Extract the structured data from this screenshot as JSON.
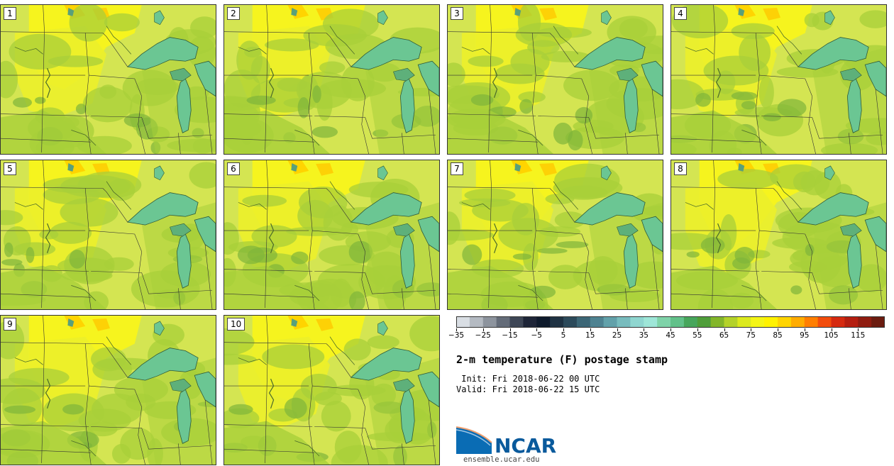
{
  "panels": [
    {
      "label": "1"
    },
    {
      "label": "2"
    },
    {
      "label": "3"
    },
    {
      "label": "4"
    },
    {
      "label": "5"
    },
    {
      "label": "6"
    },
    {
      "label": "7"
    },
    {
      "label": "8"
    },
    {
      "label": "9"
    },
    {
      "label": "10"
    }
  ],
  "colorbar": {
    "colors": [
      "#d9dee4",
      "#b4bac2",
      "#8d949e",
      "#646c79",
      "#3e4656",
      "#1e2538",
      "#0e1a2c",
      "#1f3243",
      "#2c4a5b",
      "#3c6676",
      "#4e8291",
      "#62a1aa",
      "#78bcbe",
      "#8fd6d0",
      "#9ee6d8",
      "#7fd3a9",
      "#62c18a",
      "#47a65c",
      "#4f9e3a",
      "#83b62a",
      "#b4d22a",
      "#dcea1e",
      "#f4f516",
      "#fff200",
      "#ffd400",
      "#ffac00",
      "#ff7e00",
      "#f24c0c",
      "#d52a10",
      "#b41e10",
      "#8f1c10",
      "#6b1c10"
    ],
    "tick_labels": [
      "−35",
      "−25",
      "−15",
      "−5",
      "5",
      "15",
      "25",
      "35",
      "45",
      "55",
      "65",
      "75",
      "85",
      "95",
      "105",
      "115"
    ]
  },
  "title": "2-m temperature (F) postage stamp",
  "init_text": " Init: Fri 2018-06-22 00 UTC",
  "valid_text": "Valid: Fri 2018-06-22 15 UTC",
  "logo_text": "NCAR",
  "url_text": "ensemble.ucar.edu",
  "colors": {
    "land_base": "#cfe15a",
    "warm": "#f7f51c",
    "cool": "#a8cf3a",
    "lake": "#6bc693"
  }
}
